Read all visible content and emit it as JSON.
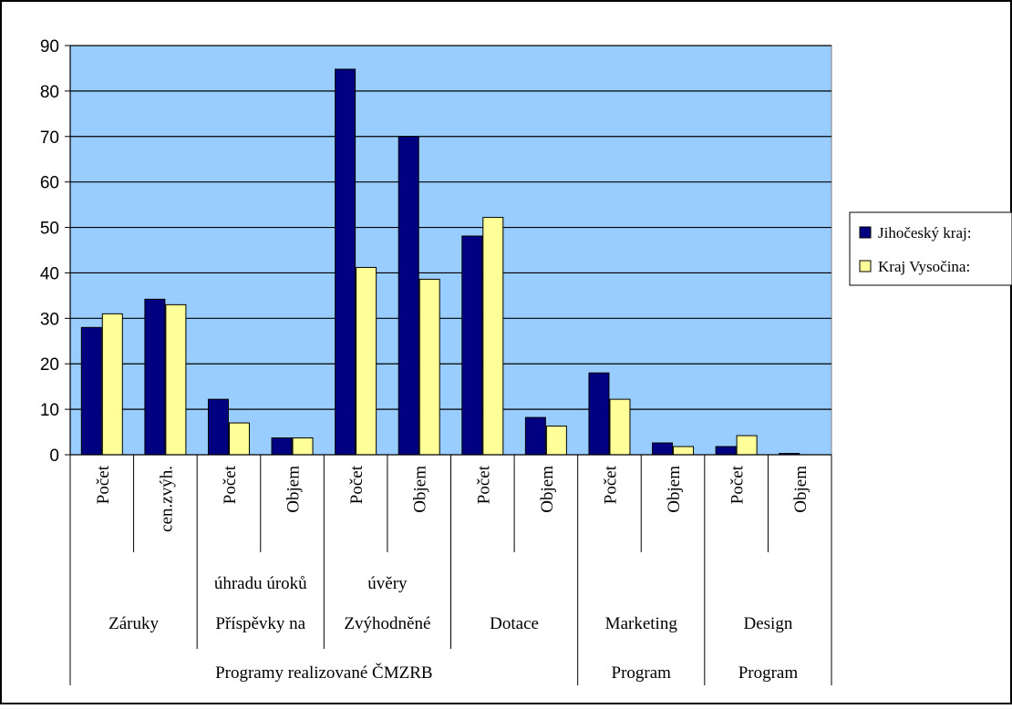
{
  "chart_data": {
    "type": "bar",
    "title": "",
    "xlabel": "",
    "ylabel": "",
    "ylim": [
      0,
      90
    ],
    "ytick_step": 10,
    "grid": true,
    "legend_position": "right",
    "colors": {
      "plot_background": "#99ccff",
      "series_1": "#000080",
      "series_2": "#ffff99",
      "gridline": "#000000"
    },
    "categories": [
      "Počet",
      "cen.zvýh.",
      "Počet",
      "Objem",
      "Počet",
      "Objem",
      "Počet",
      "Objem",
      "Počet",
      "Objem",
      "Počet",
      "Objem"
    ],
    "category_groups_level2": [
      {
        "label": "",
        "start": 0,
        "span": 2
      },
      {
        "label": "úhradu úroků",
        "start": 2,
        "span": 2
      },
      {
        "label": "úvěry",
        "start": 4,
        "span": 2
      },
      {
        "label": "",
        "start": 6,
        "span": 2
      },
      {
        "label": "",
        "start": 8,
        "span": 2
      },
      {
        "label": "",
        "start": 10,
        "span": 2
      }
    ],
    "category_groups_level3": [
      {
        "label": "Záruky",
        "start": 0,
        "span": 2
      },
      {
        "label": "Příspěvky na",
        "start": 2,
        "span": 2
      },
      {
        "label": "Zvýhodněné",
        "start": 4,
        "span": 2
      },
      {
        "label": "Dotace",
        "start": 6,
        "span": 2
      },
      {
        "label": "Marketing",
        "start": 8,
        "span": 2
      },
      {
        "label": "Design",
        "start": 10,
        "span": 2
      }
    ],
    "category_groups_level4": [
      {
        "label": "Programy realizované ČMZRB",
        "start": 0,
        "span": 8
      },
      {
        "label": "Program",
        "start": 8,
        "span": 2
      },
      {
        "label": "Program",
        "start": 10,
        "span": 2
      }
    ],
    "series": [
      {
        "name": "Jihočeský kraj:",
        "values": [
          28,
          34.2,
          12.2,
          3.7,
          84.8,
          70,
          48.1,
          8.2,
          18,
          2.6,
          1.8,
          0.3
        ]
      },
      {
        "name": "Kraj Vysočina:",
        "values": [
          31,
          33,
          7,
          3.7,
          41.2,
          38.6,
          52.2,
          6.3,
          12.2,
          1.8,
          4.2,
          0
        ]
      }
    ]
  }
}
